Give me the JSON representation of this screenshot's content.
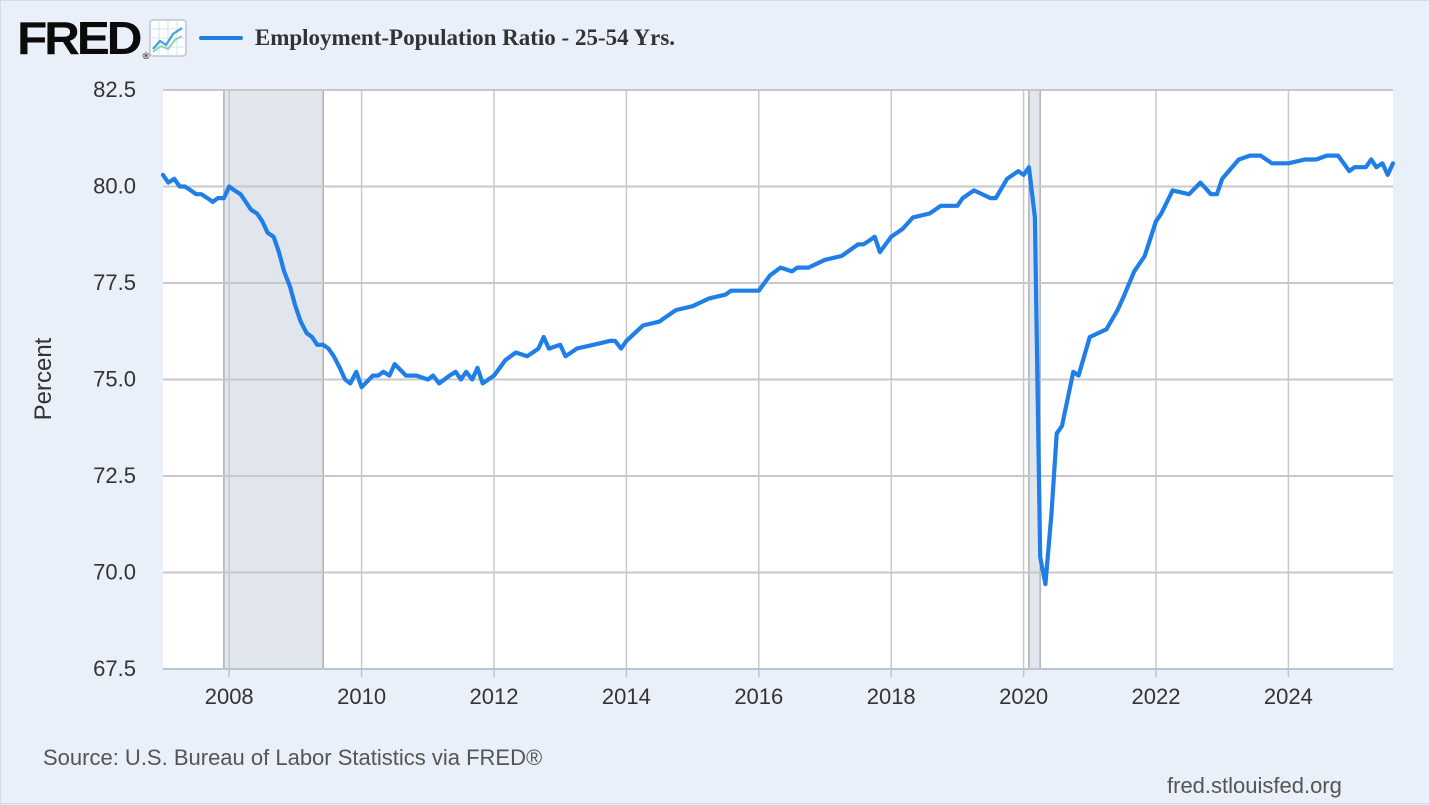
{
  "header": {
    "logo_text": "FRED",
    "logo_registered": "®",
    "series_label": "Employment-Population Ratio - 25-54 Yrs."
  },
  "footer": {
    "source": "Source: U.S. Bureau of Labor Statistics via FRED®",
    "site": "fred.stlouisfed.org"
  },
  "colors": {
    "series": "#1f7ee8",
    "recession": "#e1e6ec",
    "grid": "#c8c8c8",
    "frame_bg": "#e9f0f9",
    "plot_bg": "#ffffff"
  },
  "chart_data": {
    "type": "line",
    "title": "Employment-Population Ratio - 25-54 Yrs.",
    "xlabel": "",
    "ylabel": "Percent",
    "xlim": [
      2007.0,
      2025.58
    ],
    "ylim": [
      67.5,
      82.5
    ],
    "x_ticks": [
      2008,
      2010,
      2012,
      2014,
      2016,
      2018,
      2020,
      2022,
      2024
    ],
    "x_tick_labels": [
      "2008",
      "2010",
      "2012",
      "2014",
      "2016",
      "2018",
      "2020",
      "2022",
      "2024"
    ],
    "y_ticks": [
      67.5,
      70.0,
      72.5,
      75.0,
      77.5,
      80.0,
      82.5
    ],
    "y_tick_labels": [
      "67.5",
      "70.0",
      "72.5",
      "75.0",
      "77.5",
      "80.0",
      "82.5"
    ],
    "grid": true,
    "recessions": [
      {
        "start": 2007.92,
        "end": 2009.42
      },
      {
        "start": 2020.08,
        "end": 2020.25
      }
    ],
    "series": [
      {
        "name": "Employment-Population Ratio - 25-54 Yrs.",
        "x": [
          2007.0,
          2007.08,
          2007.17,
          2007.25,
          2007.33,
          2007.42,
          2007.5,
          2007.58,
          2007.67,
          2007.75,
          2007.83,
          2007.92,
          2008.0,
          2008.08,
          2008.17,
          2008.25,
          2008.33,
          2008.42,
          2008.5,
          2008.58,
          2008.67,
          2008.75,
          2008.83,
          2008.92,
          2009.0,
          2009.08,
          2009.17,
          2009.25,
          2009.33,
          2009.42,
          2009.5,
          2009.58,
          2009.67,
          2009.75,
          2009.83,
          2009.92,
          2010.0,
          2010.17,
          2010.25,
          2010.33,
          2010.42,
          2010.5,
          2010.67,
          2010.83,
          2011.0,
          2011.08,
          2011.17,
          2011.25,
          2011.33,
          2011.42,
          2011.5,
          2011.58,
          2011.67,
          2011.75,
          2011.83,
          2012.0,
          2012.17,
          2012.33,
          2012.5,
          2012.67,
          2012.75,
          2012.83,
          2013.0,
          2013.08,
          2013.25,
          2013.5,
          2013.75,
          2013.83,
          2013.92,
          2014.0,
          2014.25,
          2014.5,
          2014.58,
          2014.75,
          2015.0,
          2015.25,
          2015.5,
          2015.58,
          2015.75,
          2016.0,
          2016.17,
          2016.33,
          2016.5,
          2016.58,
          2016.75,
          2017.0,
          2017.25,
          2017.5,
          2017.58,
          2017.67,
          2017.75,
          2017.83,
          2018.0,
          2018.17,
          2018.33,
          2018.58,
          2018.75,
          2019.0,
          2019.08,
          2019.25,
          2019.5,
          2019.58,
          2019.75,
          2019.92,
          2020.0,
          2020.08,
          2020.17,
          2020.25,
          2020.33,
          2020.42,
          2020.5,
          2020.58,
          2020.75,
          2020.83,
          2021.0,
          2021.25,
          2021.42,
          2021.5,
          2021.67,
          2021.83,
          2022.0,
          2022.08,
          2022.25,
          2022.5,
          2022.67,
          2022.83,
          2022.92,
          2023.0,
          2023.25,
          2023.42,
          2023.58,
          2023.75,
          2023.92,
          2024.0,
          2024.25,
          2024.42,
          2024.58,
          2024.75,
          2024.92,
          2025.0,
          2025.17,
          2025.25,
          2025.33,
          2025.42,
          2025.5,
          2025.58
        ],
        "values": [
          80.3,
          80.1,
          80.2,
          80.0,
          80.0,
          79.9,
          79.8,
          79.8,
          79.7,
          79.6,
          79.7,
          79.7,
          80.0,
          79.9,
          79.8,
          79.6,
          79.4,
          79.3,
          79.1,
          78.8,
          78.7,
          78.3,
          77.8,
          77.4,
          76.9,
          76.5,
          76.2,
          76.1,
          75.9,
          75.9,
          75.8,
          75.6,
          75.3,
          75.0,
          74.9,
          75.2,
          74.8,
          75.1,
          75.1,
          75.2,
          75.1,
          75.4,
          75.1,
          75.1,
          75.0,
          75.1,
          74.9,
          75.0,
          75.1,
          75.2,
          75.0,
          75.2,
          75.0,
          75.3,
          74.9,
          75.1,
          75.5,
          75.7,
          75.6,
          75.8,
          76.1,
          75.8,
          75.9,
          75.6,
          75.8,
          75.9,
          76.0,
          76.0,
          75.8,
          76.0,
          76.4,
          76.5,
          76.6,
          76.8,
          76.9,
          77.1,
          77.2,
          77.3,
          77.3,
          77.3,
          77.7,
          77.9,
          77.8,
          77.9,
          77.9,
          78.1,
          78.2,
          78.5,
          78.5,
          78.6,
          78.7,
          78.3,
          78.7,
          78.9,
          79.2,
          79.3,
          79.5,
          79.5,
          79.7,
          79.9,
          79.7,
          79.7,
          80.2,
          80.4,
          80.3,
          80.5,
          79.2,
          70.4,
          69.7,
          71.5,
          73.6,
          73.8,
          75.2,
          75.1,
          76.1,
          76.3,
          76.8,
          77.1,
          77.8,
          78.2,
          79.1,
          79.3,
          79.9,
          79.8,
          80.1,
          79.8,
          79.8,
          80.2,
          80.7,
          80.8,
          80.8,
          80.6,
          80.6,
          80.6,
          80.7,
          80.7,
          80.8,
          80.8,
          80.4,
          80.5,
          80.5,
          80.7,
          80.5,
          80.6,
          80.3,
          80.6
        ]
      }
    ]
  }
}
